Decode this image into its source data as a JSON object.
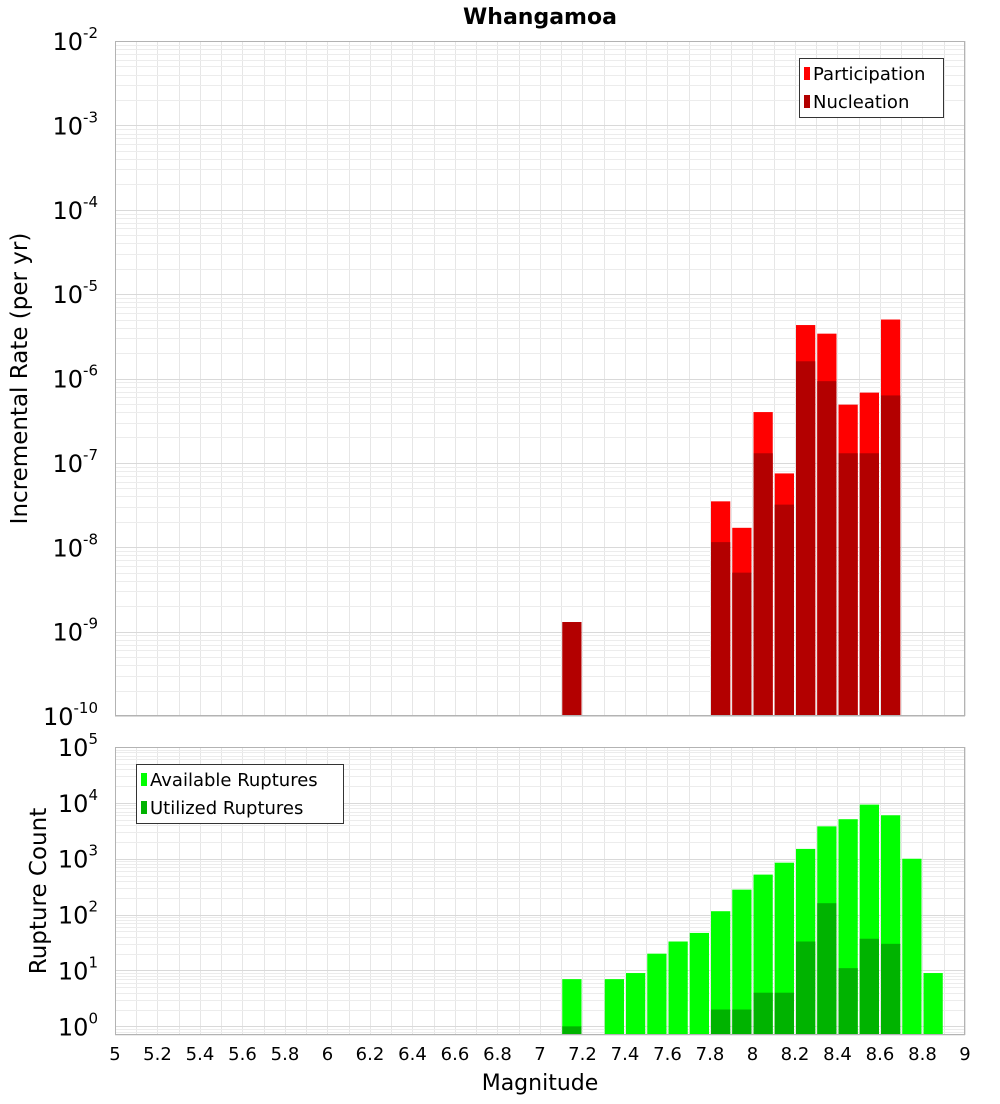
{
  "chart_data": [
    {
      "type": "bar",
      "title": "Whangamoa",
      "xlabel": "",
      "ylabel": "Incremental Rate (per yr)",
      "yscale": "log",
      "ylim": [
        1e-10,
        0.01
      ],
      "xlim": [
        5,
        9
      ],
      "grid": true,
      "legend_position": "top-right",
      "y_tick_labels": [
        {
          "base": "10",
          "exp": "-10"
        },
        {
          "base": "10",
          "exp": "-9"
        },
        {
          "base": "10",
          "exp": "-8"
        },
        {
          "base": "10",
          "exp": "-7"
        },
        {
          "base": "10",
          "exp": "-6"
        },
        {
          "base": "10",
          "exp": "-5"
        },
        {
          "base": "10",
          "exp": "-4"
        },
        {
          "base": "10",
          "exp": "-3"
        },
        {
          "base": "10",
          "exp": "-2"
        }
      ],
      "bin_width": 0.1,
      "series": [
        {
          "name": "Participation",
          "color": "#ff0000",
          "x": [
            7.85,
            7.95,
            8.05,
            8.15,
            8.25,
            8.35,
            8.45,
            8.55,
            8.65
          ],
          "values": [
            3.5e-08,
            1.7e-08,
            4e-07,
            7.5e-08,
            4.3e-06,
            3.4e-06,
            4.9e-07,
            6.8e-07,
            5e-06
          ]
        },
        {
          "name": "Nucleation",
          "color": "#b30000",
          "x": [
            7.15,
            7.85,
            7.95,
            8.05,
            8.15,
            8.25,
            8.35,
            8.45,
            8.55,
            8.65
          ],
          "values": [
            1.3e-09,
            1.15e-08,
            5e-09,
            1.3e-07,
            3.2e-08,
            1.6e-06,
            9.3e-07,
            1.3e-07,
            1.3e-07,
            6.3e-07
          ]
        }
      ]
    },
    {
      "type": "bar",
      "title": "",
      "xlabel": "Magnitude",
      "ylabel": "Rupture Count",
      "yscale": "log",
      "ylim": [
        0.7,
        100000.0
      ],
      "xlim": [
        5,
        9
      ],
      "grid": true,
      "legend_position": "top-left",
      "y_tick_labels": [
        {
          "base": "10",
          "exp": "0"
        },
        {
          "base": "10",
          "exp": "1"
        },
        {
          "base": "10",
          "exp": "2"
        },
        {
          "base": "10",
          "exp": "3"
        },
        {
          "base": "10",
          "exp": "4"
        },
        {
          "base": "10",
          "exp": "5"
        }
      ],
      "x_tick_labels": [
        "5",
        "5.2",
        "5.4",
        "5.6",
        "5.8",
        "6",
        "6.2",
        "6.4",
        "6.6",
        "6.8",
        "7",
        "7.2",
        "7.4",
        "7.6",
        "7.8",
        "8",
        "8.2",
        "8.4",
        "8.6",
        "8.8",
        "9"
      ],
      "bin_width": 0.1,
      "series": [
        {
          "name": "Available Ruptures",
          "color": "#00ff00",
          "x": [
            7.15,
            7.35,
            7.45,
            7.55,
            7.65,
            7.75,
            7.85,
            7.95,
            8.05,
            8.15,
            8.25,
            8.35,
            8.45,
            8.55,
            8.65,
            8.75,
            8.85
          ],
          "values": [
            7,
            7,
            9,
            20,
            33,
            47,
            115,
            280,
            520,
            850,
            1500,
            3800,
            5100,
            9300,
            6000,
            1000,
            9
          ]
        },
        {
          "name": "Utilized Ruptures",
          "color": "#00b300",
          "x": [
            7.15,
            7.85,
            7.95,
            8.05,
            8.15,
            8.25,
            8.35,
            8.45,
            8.55,
            8.65
          ],
          "values": [
            1,
            2,
            2,
            4,
            4,
            33,
            160,
            11,
            37,
            30
          ]
        }
      ]
    }
  ]
}
